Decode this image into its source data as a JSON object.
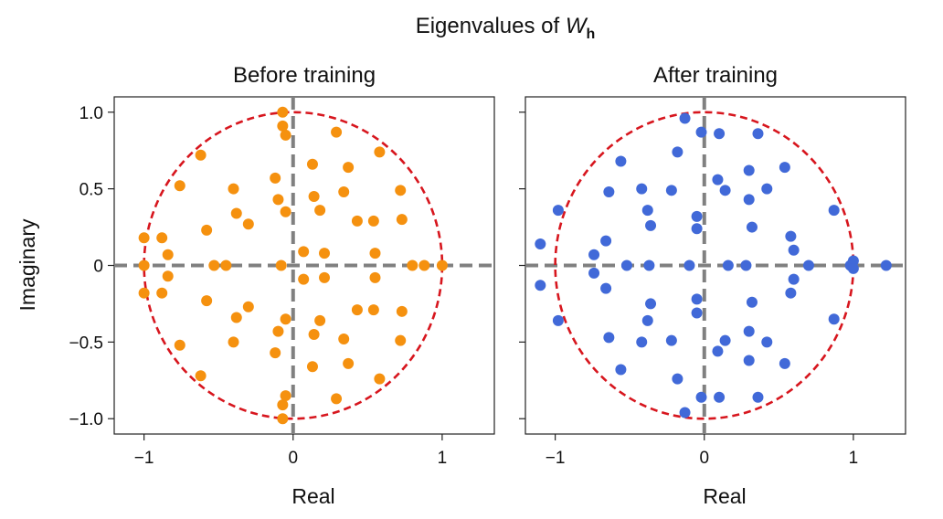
{
  "figure": {
    "title_text": "Eigenvalues of ",
    "title_var": "W",
    "title_sub": "h"
  },
  "colors": {
    "before": "#F5910F",
    "after": "#4169D8",
    "circle": "#D7161E",
    "crosshair": "#808080"
  },
  "ylabel": "Imaginary",
  "chart_data": [
    {
      "type": "scatter",
      "title": "Before training",
      "xlabel": "Real",
      "ylabel": "Imaginary",
      "xlim": [
        -1.2,
        1.35
      ],
      "ylim": [
        -1.1,
        1.1
      ],
      "xticks": [
        {
          "v": -1,
          "label": "−1"
        },
        {
          "v": 0,
          "label": "0"
        },
        {
          "v": 1,
          "label": "1"
        }
      ],
      "yticks": [
        {
          "v": 1,
          "label": "1.0"
        },
        {
          "v": 0.5,
          "label": "0.5"
        },
        {
          "v": 0,
          "label": "0"
        },
        {
          "v": -0.5,
          "label": "−0.5"
        },
        {
          "v": -1,
          "label": "−1.0"
        }
      ],
      "unit_circle": true,
      "color": "#F5910F",
      "points": [
        [
          -1.0,
          0.18
        ],
        [
          -1.0,
          -0.18
        ],
        [
          -0.88,
          0.18
        ],
        [
          -0.88,
          -0.18
        ],
        [
          -0.84,
          0.07
        ],
        [
          -0.84,
          -0.07
        ],
        [
          -0.76,
          0.52
        ],
        [
          -0.76,
          -0.52
        ],
        [
          -0.62,
          0.72
        ],
        [
          -0.62,
          -0.72
        ],
        [
          -0.58,
          0.23
        ],
        [
          -0.58,
          -0.23
        ],
        [
          -0.53,
          0.0
        ],
        [
          -0.45,
          0.0
        ],
        [
          -0.4,
          0.5
        ],
        [
          -0.4,
          -0.5
        ],
        [
          -0.38,
          0.34
        ],
        [
          -0.38,
          -0.34
        ],
        [
          -0.3,
          0.27
        ],
        [
          -0.3,
          -0.27
        ],
        [
          -0.12,
          0.57
        ],
        [
          -0.12,
          -0.57
        ],
        [
          -0.1,
          0.43
        ],
        [
          -0.1,
          -0.43
        ],
        [
          -0.07,
          1.0
        ],
        [
          -0.07,
          -1.0
        ],
        [
          -0.07,
          0.91
        ],
        [
          -0.07,
          -0.91
        ],
        [
          -0.05,
          0.85
        ],
        [
          -0.05,
          -0.85
        ],
        [
          -0.05,
          0.35
        ],
        [
          -0.05,
          -0.35
        ],
        [
          -0.08,
          0.0
        ],
        [
          0.07,
          0.09
        ],
        [
          0.07,
          -0.09
        ],
        [
          0.13,
          0.66
        ],
        [
          0.13,
          -0.66
        ],
        [
          0.14,
          0.45
        ],
        [
          0.14,
          -0.45
        ],
        [
          0.18,
          0.36
        ],
        [
          0.18,
          -0.36
        ],
        [
          0.21,
          0.08
        ],
        [
          0.21,
          -0.08
        ],
        [
          0.29,
          0.87
        ],
        [
          0.29,
          -0.87
        ],
        [
          0.34,
          0.48
        ],
        [
          0.34,
          -0.48
        ],
        [
          0.37,
          0.64
        ],
        [
          0.37,
          -0.64
        ],
        [
          0.43,
          0.29
        ],
        [
          0.43,
          -0.29
        ],
        [
          0.54,
          0.29
        ],
        [
          0.54,
          -0.29
        ],
        [
          0.55,
          0.08
        ],
        [
          0.55,
          -0.08
        ],
        [
          0.58,
          0.74
        ],
        [
          0.58,
          -0.74
        ],
        [
          0.72,
          0.49
        ],
        [
          0.72,
          -0.49
        ],
        [
          0.73,
          0.3
        ],
        [
          0.73,
          -0.3
        ],
        [
          0.8,
          0.0
        ],
        [
          0.88,
          0.0
        ],
        [
          1.0,
          0.0
        ],
        [
          -1.0,
          0.0
        ]
      ]
    },
    {
      "type": "scatter",
      "title": "After training",
      "xlabel": "Real",
      "ylabel": "",
      "xlim": [
        -1.2,
        1.35
      ],
      "ylim": [
        -1.1,
        1.1
      ],
      "xticks": [
        {
          "v": -1,
          "label": "−1"
        },
        {
          "v": 0,
          "label": "0"
        },
        {
          "v": 1,
          "label": "1"
        }
      ],
      "yticks": [
        {
          "v": 1,
          "label": ""
        },
        {
          "v": 0.5,
          "label": ""
        },
        {
          "v": 0,
          "label": ""
        },
        {
          "v": -0.5,
          "label": ""
        },
        {
          "v": -1,
          "label": ""
        }
      ],
      "unit_circle": true,
      "color": "#4169D8",
      "points": [
        [
          -1.1,
          0.14
        ],
        [
          -1.1,
          -0.13
        ],
        [
          -0.98,
          0.36
        ],
        [
          -0.98,
          -0.36
        ],
        [
          -0.74,
          0.07
        ],
        [
          -0.74,
          -0.05
        ],
        [
          -0.66,
          0.16
        ],
        [
          -0.66,
          -0.15
        ],
        [
          -0.64,
          0.48
        ],
        [
          -0.64,
          -0.47
        ],
        [
          -0.56,
          0.68
        ],
        [
          -0.56,
          -0.68
        ],
        [
          -0.52,
          0.0
        ],
        [
          -0.42,
          0.5
        ],
        [
          -0.42,
          -0.5
        ],
        [
          -0.38,
          0.36
        ],
        [
          -0.38,
          -0.36
        ],
        [
          -0.36,
          0.26
        ],
        [
          -0.36,
          -0.25
        ],
        [
          -0.37,
          0.0
        ],
        [
          -0.22,
          0.49
        ],
        [
          -0.22,
          -0.49
        ],
        [
          -0.18,
          0.74
        ],
        [
          -0.18,
          -0.74
        ],
        [
          -0.13,
          0.96
        ],
        [
          -0.13,
          -0.96
        ],
        [
          -0.05,
          0.32
        ],
        [
          -0.05,
          -0.31
        ],
        [
          -0.05,
          0.24
        ],
        [
          -0.05,
          -0.22
        ],
        [
          -0.1,
          0.0
        ],
        [
          -0.02,
          0.87
        ],
        [
          -0.02,
          -0.86
        ],
        [
          0.1,
          0.86
        ],
        [
          0.1,
          -0.86
        ],
        [
          0.09,
          0.56
        ],
        [
          0.09,
          -0.56
        ],
        [
          0.14,
          0.49
        ],
        [
          0.14,
          -0.49
        ],
        [
          0.16,
          0.0
        ],
        [
          0.28,
          0.0
        ],
        [
          0.3,
          0.62
        ],
        [
          0.3,
          -0.62
        ],
        [
          0.3,
          0.43
        ],
        [
          0.3,
          -0.43
        ],
        [
          0.32,
          0.25
        ],
        [
          0.32,
          -0.24
        ],
        [
          0.36,
          0.86
        ],
        [
          0.36,
          -0.86
        ],
        [
          0.42,
          0.5
        ],
        [
          0.42,
          -0.5
        ],
        [
          0.54,
          0.64
        ],
        [
          0.54,
          -0.64
        ],
        [
          0.58,
          0.19
        ],
        [
          0.58,
          -0.18
        ],
        [
          0.6,
          0.1
        ],
        [
          0.6,
          -0.09
        ],
        [
          0.7,
          0.0
        ],
        [
          0.87,
          0.36
        ],
        [
          0.87,
          -0.35
        ],
        [
          0.98,
          0.0
        ],
        [
          1.0,
          0.03
        ],
        [
          1.0,
          -0.02
        ],
        [
          1.22,
          0.0
        ]
      ]
    }
  ]
}
